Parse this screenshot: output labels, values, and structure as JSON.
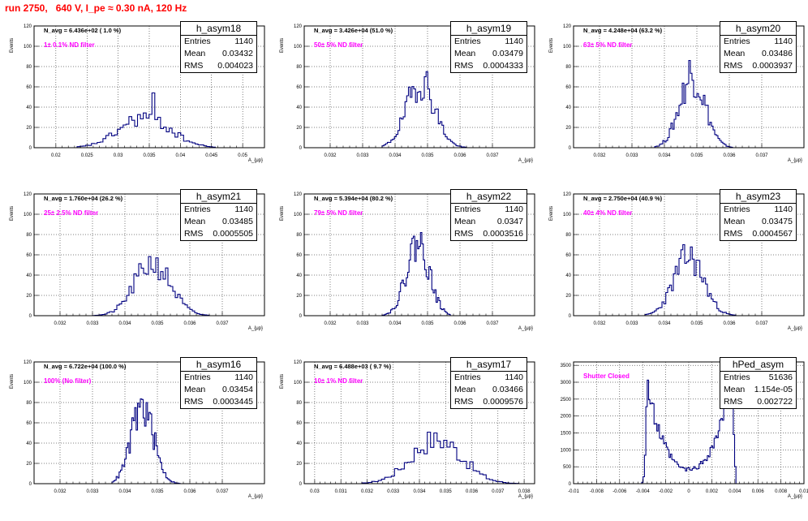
{
  "run_title": "run 2750,   640 V, I_pe ≈ 0.30 nA, 120 Hz",
  "stat_labels": {
    "entries": "Entries",
    "mean": "Mean",
    "rms": "RMS"
  },
  "chart_data": [
    {
      "type": "histogram",
      "name": "h_asym18",
      "navg": "N_avg = 6.436e+02 ( 1.0 %)",
      "filter": "1± 0.1% ND filter",
      "entries": "1140",
      "mean": "0.03432",
      "rms": "0.004023",
      "xlabel": "A_{μp}",
      "ylabel": "Events",
      "xlim": [
        0.0165,
        0.0535
      ],
      "ylim": [
        0,
        120
      ],
      "xticks": [
        0.02,
        0.025,
        0.03,
        0.035,
        0.04,
        0.045,
        0.05
      ],
      "xticklabels": [
        "0.02",
        "0.025",
        "0.03",
        "0.035",
        "0.04",
        "0.045",
        "0.05"
      ],
      "yticks": [
        0,
        20,
        40,
        60,
        80,
        100,
        120
      ],
      "yticklabels": [
        "0",
        "20",
        "40",
        "60",
        "80",
        "100",
        "120"
      ],
      "x": [
        0.0234,
        0.0456
      ],
      "peak": 0.03432,
      "sigma": 0.004023,
      "max": 54,
      "top": 30,
      "seed": 18
    },
    {
      "type": "histogram",
      "name": "h_asym19",
      "navg": "N_avg = 3.426e+04 (51.0 %)",
      "filter": "50± 5% ND filter",
      "entries": "1140",
      "mean": "0.03479",
      "rms": "0.0004333",
      "xlabel": "A_{μp}",
      "ylabel": "Events",
      "xlim": [
        0.0312,
        0.0383
      ],
      "ylim": [
        0,
        120
      ],
      "xticks": [
        0.032,
        0.033,
        0.034,
        0.035,
        0.036,
        0.037
      ],
      "xticklabels": [
        "0.032",
        "0.033",
        "0.034",
        "0.035",
        "0.036",
        "0.037"
      ],
      "yticks": [
        0,
        20,
        40,
        60,
        80,
        100,
        120
      ],
      "yticklabels": [
        "0",
        "20",
        "40",
        "60",
        "80",
        "100",
        "120"
      ],
      "x": [
        0.0336,
        0.0362
      ],
      "peak": 0.03479,
      "sigma": 0.0004333,
      "max": 75,
      "top": 65,
      "seed": 19
    },
    {
      "type": "histogram",
      "name": "h_asym20",
      "navg": "N_avg = 4.248e+04 (63.2 %)",
      "filter": "63± 5% ND filter",
      "entries": "1140",
      "mean": "0.03486",
      "rms": "0.0003937",
      "xlabel": "A_{μp}",
      "ylabel": "Events",
      "xlim": [
        0.0312,
        0.0383
      ],
      "ylim": [
        0,
        120
      ],
      "xticks": [
        0.032,
        0.033,
        0.034,
        0.035,
        0.036,
        0.037
      ],
      "xticklabels": [
        "0.032",
        "0.033",
        "0.034",
        "0.035",
        "0.036",
        "0.037"
      ],
      "yticks": [
        0,
        20,
        40,
        60,
        80,
        100,
        120
      ],
      "yticklabels": [
        "0",
        "20",
        "40",
        "60",
        "80",
        "100",
        "120"
      ],
      "x": [
        0.0337,
        0.0361
      ],
      "peak": 0.03486,
      "sigma": 0.0003937,
      "max": 86,
      "top": 70,
      "seed": 20
    },
    {
      "type": "histogram",
      "name": "h_asym21",
      "navg": "N_avg = 1.760e+04 (26.2 %)",
      "filter": "25± 2.5% ND filter",
      "entries": "1140",
      "mean": "0.03485",
      "rms": "0.0005505",
      "xlabel": "A_{μp}",
      "ylabel": "Events",
      "xlim": [
        0.0312,
        0.0383
      ],
      "ylim": [
        0,
        120
      ],
      "xticks": [
        0.032,
        0.033,
        0.034,
        0.035,
        0.036,
        0.037
      ],
      "xticklabels": [
        "0.032",
        "0.033",
        "0.034",
        "0.035",
        "0.036",
        "0.037"
      ],
      "yticks": [
        0,
        20,
        40,
        60,
        80,
        100,
        120
      ],
      "yticklabels": [
        "0",
        "20",
        "40",
        "60",
        "80",
        "100",
        "120"
      ],
      "x": [
        0.033,
        0.0366
      ],
      "peak": 0.03485,
      "sigma": 0.0005505,
      "max": 57,
      "top": 52,
      "seed": 21
    },
    {
      "type": "histogram",
      "name": "h_asym22",
      "navg": "N_avg = 5.394e+04 (80.2 %)",
      "filter": "79± 5% ND filter",
      "entries": "1140",
      "mean": "0.0347",
      "rms": "0.0003516",
      "xlabel": "A_{μp}",
      "ylabel": "Events",
      "xlim": [
        0.0312,
        0.0383
      ],
      "ylim": [
        0,
        120
      ],
      "xticks": [
        0.032,
        0.033,
        0.034,
        0.035,
        0.036,
        0.037
      ],
      "xticklabels": [
        "0.032",
        "0.033",
        "0.034",
        "0.035",
        "0.036",
        "0.037"
      ],
      "yticks": [
        0,
        20,
        40,
        60,
        80,
        100,
        120
      ],
      "yticklabels": [
        "0",
        "20",
        "40",
        "60",
        "80",
        "100",
        "120"
      ],
      "x": [
        0.0336,
        0.0357
      ],
      "peak": 0.0347,
      "sigma": 0.0003516,
      "max": 82,
      "top": 72,
      "seed": 22
    },
    {
      "type": "histogram",
      "name": "h_asym23",
      "navg": "N_avg = 2.750e+04 (40.9 %)",
      "filter": "40± 4% ND filter",
      "entries": "1140",
      "mean": "0.03475",
      "rms": "0.0004567",
      "xlabel": "A_{μp}",
      "ylabel": "Events",
      "xlim": [
        0.0312,
        0.0383
      ],
      "ylim": [
        0,
        120
      ],
      "xticks": [
        0.032,
        0.033,
        0.034,
        0.035,
        0.036,
        0.037
      ],
      "xticklabels": [
        "0.032",
        "0.033",
        "0.034",
        "0.035",
        "0.036",
        "0.037"
      ],
      "yticks": [
        0,
        20,
        40,
        60,
        80,
        100,
        120
      ],
      "yticklabels": [
        "0",
        "20",
        "40",
        "60",
        "80",
        "100",
        "120"
      ],
      "x": [
        0.0334,
        0.0362
      ],
      "peak": 0.03475,
      "sigma": 0.0004567,
      "max": 70,
      "top": 58,
      "seed": 23
    },
    {
      "type": "histogram",
      "name": "h_asym16",
      "navg": "N_avg = 6.722e+04 (100.0 %)",
      "filter": "100% (No filter)",
      "entries": "1140",
      "mean": "0.03454",
      "rms": "0.0003445",
      "xlabel": "A_{μp}",
      "ylabel": "Events",
      "xlim": [
        0.0312,
        0.0383
      ],
      "ylim": [
        0,
        120
      ],
      "xticks": [
        0.032,
        0.033,
        0.034,
        0.035,
        0.036,
        0.037
      ],
      "xticklabels": [
        "0.032",
        "0.033",
        "0.034",
        "0.035",
        "0.036",
        "0.037"
      ],
      "yticks": [
        0,
        20,
        40,
        60,
        80,
        100,
        120
      ],
      "yticklabels": [
        "0",
        "20",
        "40",
        "60",
        "80",
        "100",
        "120"
      ],
      "x": [
        0.0336,
        0.0357
      ],
      "peak": 0.03454,
      "sigma": 0.0003445,
      "max": 80,
      "top": 76,
      "seed": 16
    },
    {
      "type": "histogram",
      "name": "h_asym17",
      "navg": "N_avg = 6.488e+03 ( 9.7 %)",
      "filter": "10± 1% ND filter",
      "entries": "1140",
      "mean": "0.03466",
      "rms": "0.0009576",
      "xlabel": "A_{μp}",
      "ylabel": "Events",
      "xlim": [
        0.0296,
        0.0384
      ],
      "ylim": [
        0,
        120
      ],
      "xticks": [
        0.03,
        0.031,
        0.032,
        0.033,
        0.034,
        0.035,
        0.036,
        0.037,
        0.038
      ],
      "xticklabels": [
        "0.03",
        "0.031",
        "0.032",
        "0.033",
        "0.034",
        "0.035",
        "0.036",
        "0.037",
        "0.038"
      ],
      "yticks": [
        0,
        20,
        40,
        60,
        80,
        100,
        120
      ],
      "yticklabels": [
        "0",
        "20",
        "40",
        "60",
        "80",
        "100",
        "120"
      ],
      "x": [
        0.0318,
        0.0378
      ],
      "peak": 0.03466,
      "sigma": 0.0009576,
      "max": 50,
      "top": 44,
      "seed": 17
    },
    {
      "type": "histogram",
      "name": "hPed_asym",
      "navg": "",
      "filter": "Shutter Closed",
      "entries": "51636",
      "mean": "1.154e-05",
      "rms": "0.002722",
      "xlabel": "A_{μp}",
      "ylabel": "",
      "xlim": [
        -0.01,
        0.01
      ],
      "ylim": [
        0,
        3600
      ],
      "xticks": [
        -0.01,
        -0.008,
        -0.006,
        -0.004,
        -0.002,
        0,
        0.002,
        0.004,
        0.006,
        0.008,
        0.01
      ],
      "xticklabels": [
        "-0.01",
        "-0.008",
        "-0.006",
        "-0.004",
        "-0.002",
        "0",
        "0.002",
        "0.004",
        "0.006",
        "0.008",
        "0.01"
      ],
      "yticks": [
        0,
        500,
        1000,
        1500,
        2000,
        2500,
        3000,
        3500
      ],
      "yticklabels": [
        "0",
        "500",
        "1000",
        "1500",
        "2000",
        "2500",
        "3000",
        "3500"
      ],
      "x": [
        -0.0042,
        0.0041
      ],
      "bimodal": true,
      "seed": 99
    }
  ]
}
